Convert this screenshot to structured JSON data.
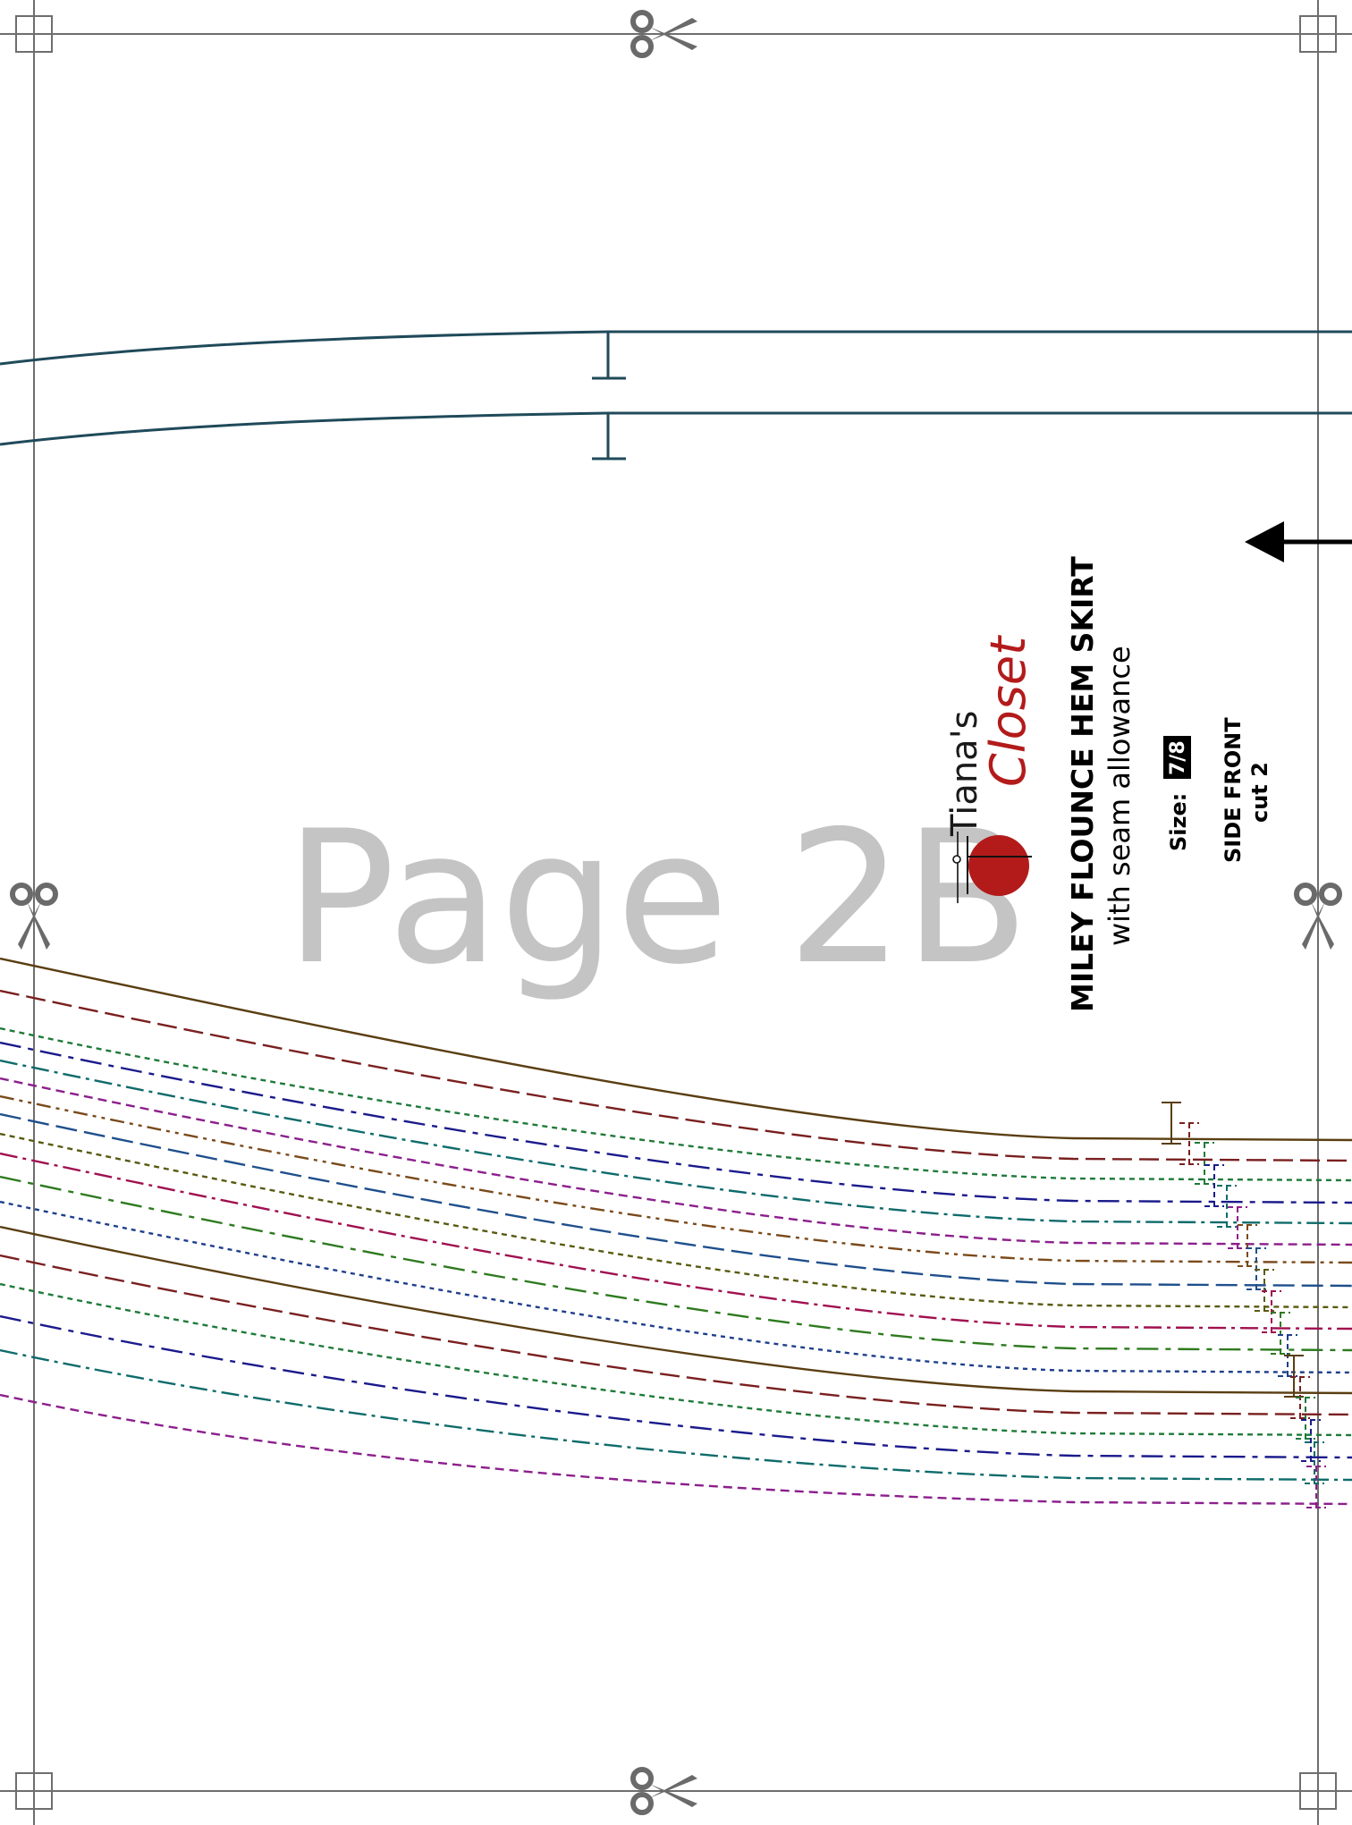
{
  "page_label": "Page 2B",
  "brand": {
    "line1": "Tiana's",
    "line2": "Closet",
    "accent_color": "#b31b1b"
  },
  "pattern": {
    "title": "MILEY FLOUNCE HEM SKIRT",
    "subtitle": "with seam allowance",
    "size_label": "Size:",
    "size_value": "7/8",
    "piece_name": "SIDE FRONT",
    "cut_instruction": "cut 2"
  },
  "icons": [
    "scissors-icon",
    "registration-mark-icon",
    "grainline-arrow-icon"
  ],
  "line_colors": [
    "#5a3e12",
    "#7a1f1f",
    "#1f7a3a",
    "#1a1a8c",
    "#0f6b6b",
    "#8c1f8c",
    "#7a4a1a",
    "#1f4f8c",
    "#5a5a12",
    "#a01050",
    "#2e7a1f",
    "#1f3f8c"
  ]
}
